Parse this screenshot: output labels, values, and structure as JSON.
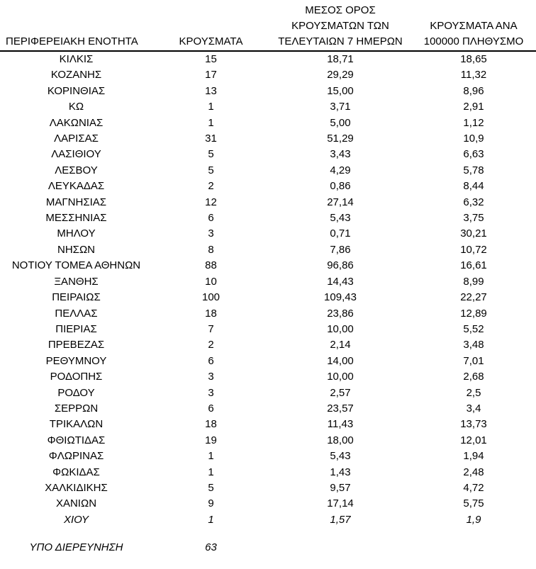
{
  "page": {
    "background": "#ffffff",
    "text_color": "#000000",
    "rule_color": "#000000"
  },
  "table": {
    "headers": [
      "ΠΕΡΙΦΕΡΕΙΑΚΗ ΕΝΟΤΗΤΑ",
      "ΚΡΟΥΣΜΑΤΑ",
      "ΜΕΣΟΣ ΟΡΟΣ\nΚΡΟΥΣΜΑΤΩΝ ΤΩΝ\nΤΕΛΕΥΤΑΙΩΝ 7 ΗΜΕΡΩΝ",
      "ΚΡΟΥΣΜΑΤΑ ΑΝΑ\n100000 ΠΛΗΘΥΣΜΟ"
    ],
    "rows": [
      {
        "region": "ΚΙΛΚΙΣ",
        "cases": "15",
        "avg7": "18,71",
        "per100k": "18,65",
        "italic": false
      },
      {
        "region": "ΚΟΖΑΝΗΣ",
        "cases": "17",
        "avg7": "29,29",
        "per100k": "11,32",
        "italic": false
      },
      {
        "region": "ΚΟΡΙΝΘΙΑΣ",
        "cases": "13",
        "avg7": "15,00",
        "per100k": "8,96",
        "italic": false
      },
      {
        "region": "ΚΩ",
        "cases": "1",
        "avg7": "3,71",
        "per100k": "2,91",
        "italic": false
      },
      {
        "region": "ΛΑΚΩΝΙΑΣ",
        "cases": "1",
        "avg7": "5,00",
        "per100k": "1,12",
        "italic": false
      },
      {
        "region": "ΛΑΡΙΣΑΣ",
        "cases": "31",
        "avg7": "51,29",
        "per100k": "10,9",
        "italic": false
      },
      {
        "region": "ΛΑΣΙΘΙΟΥ",
        "cases": "5",
        "avg7": "3,43",
        "per100k": "6,63",
        "italic": false
      },
      {
        "region": "ΛΕΣΒΟΥ",
        "cases": "5",
        "avg7": "4,29",
        "per100k": "5,78",
        "italic": false
      },
      {
        "region": "ΛΕΥΚΑΔΑΣ",
        "cases": "2",
        "avg7": "0,86",
        "per100k": "8,44",
        "italic": false
      },
      {
        "region": "ΜΑΓΝΗΣΙΑΣ",
        "cases": "12",
        "avg7": "27,14",
        "per100k": "6,32",
        "italic": false
      },
      {
        "region": "ΜΕΣΣΗΝΙΑΣ",
        "cases": "6",
        "avg7": "5,43",
        "per100k": "3,75",
        "italic": false
      },
      {
        "region": "ΜΗΛΟΥ",
        "cases": "3",
        "avg7": "0,71",
        "per100k": "30,21",
        "italic": false
      },
      {
        "region": "ΝΗΣΩΝ",
        "cases": "8",
        "avg7": "7,86",
        "per100k": "10,72",
        "italic": false
      },
      {
        "region": "ΝΟΤΙΟΥ ΤΟΜΕΑ ΑΘΗΝΩΝ",
        "cases": "88",
        "avg7": "96,86",
        "per100k": "16,61",
        "italic": false
      },
      {
        "region": "ΞΑΝΘΗΣ",
        "cases": "10",
        "avg7": "14,43",
        "per100k": "8,99",
        "italic": false
      },
      {
        "region": "ΠΕΙΡΑΙΩΣ",
        "cases": "100",
        "avg7": "109,43",
        "per100k": "22,27",
        "italic": false
      },
      {
        "region": "ΠΕΛΛΑΣ",
        "cases": "18",
        "avg7": "23,86",
        "per100k": "12,89",
        "italic": false
      },
      {
        "region": "ΠΙΕΡΙΑΣ",
        "cases": "7",
        "avg7": "10,00",
        "per100k": "5,52",
        "italic": false
      },
      {
        "region": "ΠΡΕΒΕΖΑΣ",
        "cases": "2",
        "avg7": "2,14",
        "per100k": "3,48",
        "italic": false
      },
      {
        "region": "ΡΕΘΥΜΝΟΥ",
        "cases": "6",
        "avg7": "14,00",
        "per100k": "7,01",
        "italic": false
      },
      {
        "region": "ΡΟΔΟΠΗΣ",
        "cases": "3",
        "avg7": "10,00",
        "per100k": "2,68",
        "italic": false
      },
      {
        "region": "ΡΟΔΟΥ",
        "cases": "3",
        "avg7": "2,57",
        "per100k": "2,5",
        "italic": false
      },
      {
        "region": "ΣΕΡΡΩΝ",
        "cases": "6",
        "avg7": "23,57",
        "per100k": "3,4",
        "italic": false
      },
      {
        "region": "ΤΡΙΚΑΛΩΝ",
        "cases": "18",
        "avg7": "11,43",
        "per100k": "13,73",
        "italic": false
      },
      {
        "region": "ΦΘΙΩΤΙΔΑΣ",
        "cases": "19",
        "avg7": "18,00",
        "per100k": "12,01",
        "italic": false
      },
      {
        "region": "ΦΛΩΡΙΝΑΣ",
        "cases": "1",
        "avg7": "5,43",
        "per100k": "1,94",
        "italic": false
      },
      {
        "region": "ΦΩΚΙΔΑΣ",
        "cases": "1",
        "avg7": "1,43",
        "per100k": "2,48",
        "italic": false
      },
      {
        "region": "ΧΑΛΚΙΔΙΚΗΣ",
        "cases": "5",
        "avg7": "9,57",
        "per100k": "4,72",
        "italic": false
      },
      {
        "region": "ΧΑΝΙΩΝ",
        "cases": "9",
        "avg7": "17,14",
        "per100k": "5,75",
        "italic": false
      },
      {
        "region": "ΧΙΟΥ",
        "cases": "1",
        "avg7": "1,57",
        "per100k": "1,9",
        "italic": true
      }
    ]
  },
  "footer": {
    "label": "ΥΠΟ ΔΙΕΡΕΥΝΗΣΗ",
    "cases": "63"
  }
}
